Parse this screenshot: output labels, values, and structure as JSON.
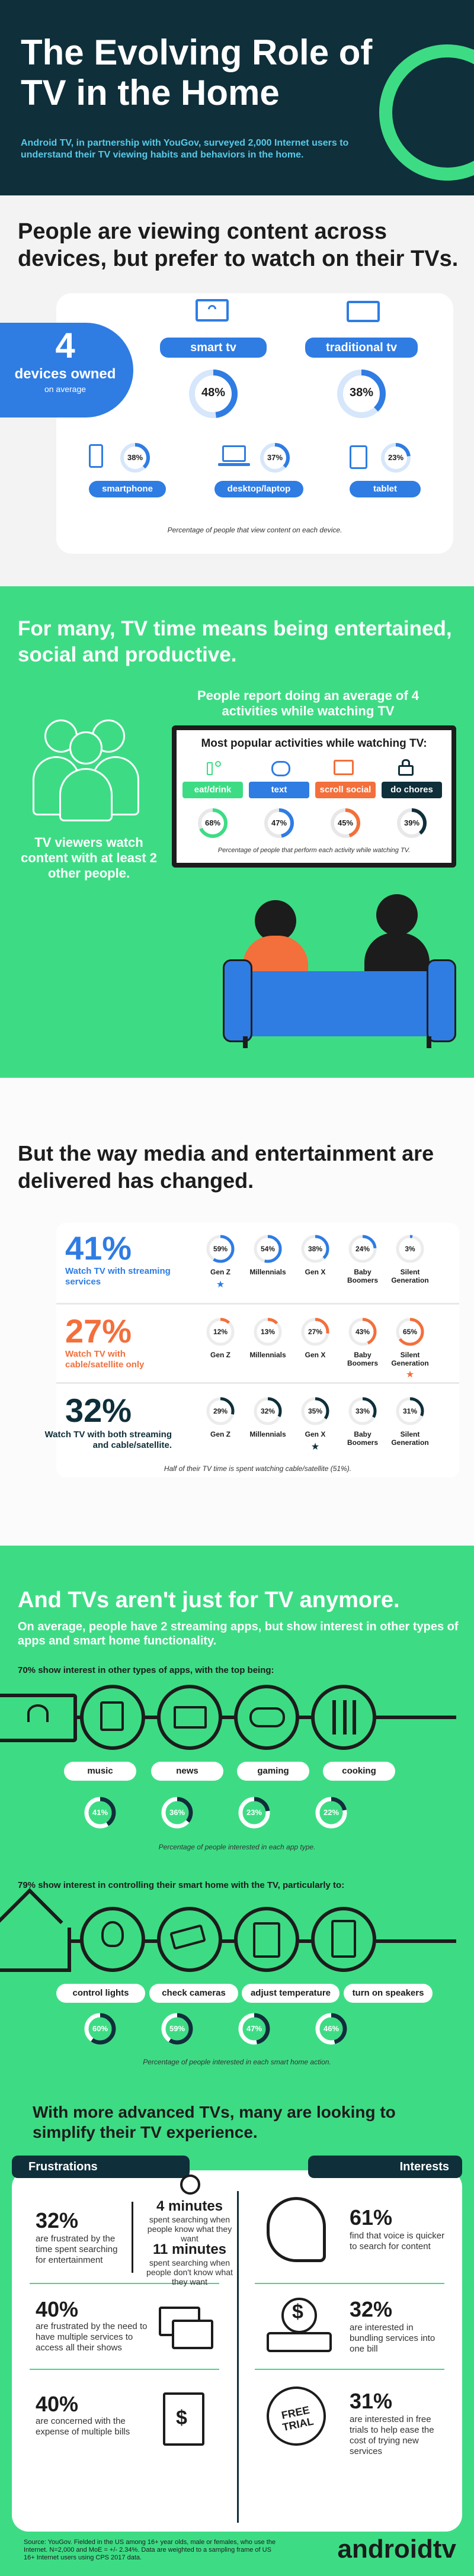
{
  "header": {
    "title": "The Evolving Role of TV in the Home",
    "intro": "Android TV, in partnership with YouGov, surveyed 2,000 Internet users to understand their TV viewing habits and behaviors in the home."
  },
  "devices": {
    "heading": "People are viewing content across devices, but prefer to watch on their TVs.",
    "owned_number": "4",
    "owned_label": "devices owned",
    "owned_sub": "on average",
    "items": [
      {
        "label": "smart tv",
        "pct": "48%",
        "value": 48
      },
      {
        "label": "traditional tv",
        "pct": "38%",
        "value": 38
      },
      {
        "label": "smartphone",
        "pct": "38%",
        "value": 38
      },
      {
        "label": "desktop/laptop",
        "pct": "37%",
        "value": 37
      },
      {
        "label": "tablet",
        "pct": "23%",
        "value": 23
      }
    ],
    "note": "Percentage of people that view content on each device."
  },
  "activities": {
    "heading": "For many, TV time means being entertained, social and productive.",
    "people_text": "TV viewers watch content with at least 2 other people.",
    "report_text": "People report doing an average of 4 activities while watching TV",
    "board_title": "Most popular activities while watching TV:",
    "items": [
      {
        "label": "eat/drink",
        "pct": "68%",
        "value": 68,
        "color": "#3ddc84"
      },
      {
        "label": "text",
        "pct": "47%",
        "value": 47,
        "color": "#2f7ce3"
      },
      {
        "label": "scroll social",
        "pct": "45%",
        "value": 45,
        "color": "#f36f3b"
      },
      {
        "label": "do chores",
        "pct": "39%",
        "value": 39,
        "color": "#0f2f3a"
      }
    ],
    "note": "Percentage of people that perform each activity while watching TV."
  },
  "delivery": {
    "heading": "But the way media and entertainment are delivered has changed.",
    "generations": [
      "Gen Z",
      "Millennials",
      "Gen X",
      "Baby Boomers",
      "Silent Generation"
    ],
    "rows": [
      {
        "big": "41%",
        "label": "Watch TV with streaming services",
        "color": "#2f7ce3",
        "pcts": [
          "59%",
          "54%",
          "38%",
          "24%",
          "3%"
        ],
        "values": [
          59,
          54,
          38,
          24,
          3
        ],
        "star": 0
      },
      {
        "big": "27%",
        "label": "Watch TV with cable/satellite only",
        "color": "#f36f3b",
        "pcts": [
          "12%",
          "13%",
          "27%",
          "43%",
          "65%"
        ],
        "values": [
          12,
          13,
          27,
          43,
          65
        ],
        "star": 4
      },
      {
        "big": "32%",
        "label": "Watch TV with both streaming and cable/satellite.",
        "color": "#0f2f3a",
        "pcts": [
          "29%",
          "32%",
          "35%",
          "33%",
          "31%"
        ],
        "values": [
          29,
          32,
          35,
          33,
          31
        ],
        "star": 2
      }
    ],
    "note": "Half of their TV time is spent watching cable/satellite (51%)."
  },
  "apps": {
    "heading": "And TVs aren't just for TV anymore.",
    "sub": "On average, people have 2 streaming apps, but show interest in other types of apps and smart home functionality.",
    "apps_intro": "70% show interest in other types of apps, with the top being:",
    "app_items": [
      {
        "label": "music",
        "pct": "41%",
        "value": 41
      },
      {
        "label": "news",
        "pct": "36%",
        "value": 36
      },
      {
        "label": "gaming",
        "pct": "23%",
        "value": 23
      },
      {
        "label": "cooking",
        "pct": "22%",
        "value": 22
      }
    ],
    "apps_note": "Percentage of people interested in each app type.",
    "home_intro": "79% show interest in controlling their smart home with the TV, particularly to:",
    "home_items": [
      {
        "label": "control lights",
        "pct": "60%",
        "value": 60
      },
      {
        "label": "check cameras",
        "pct": "59%",
        "value": 59
      },
      {
        "label": "adjust temperature",
        "pct": "47%",
        "value": 47
      },
      {
        "label": "turn on speakers",
        "pct": "46%",
        "value": 46
      }
    ],
    "home_note": "Percentage of people interested in each smart home action."
  },
  "advanced": {
    "heading": "With more advanced TVs, many are looking to simplify their TV experience.",
    "frustrations_label": "Frustrations",
    "interests_label": "Interests",
    "f1_pct": "32%",
    "f1_text": "are frustrated by the time spent searching for entertainment",
    "t1_big": "4 minutes",
    "t1_text": "spent searching when people know what they want",
    "t2_big": "11 minutes",
    "t2_text": "spent searching when people don't know what they want",
    "f2_pct": "40%",
    "f2_text": "are frustrated by the need to have multiple services to access all their shows",
    "f3_pct": "40%",
    "f3_text": "are concerned with the expense of multiple bills",
    "i1_pct": "61%",
    "i1_text": "find that voice is quicker to search for content",
    "i2_pct": "32%",
    "i2_text": "are interested in bundling services into one bill",
    "i3_pct": "31%",
    "i3_text": "are interested in free trials to help ease the cost of trying new services",
    "free_trial_text": "FREE TRIAL"
  },
  "footer": {
    "source": "Source: YouGov. Fielded in the US among 16+ year olds, male or females, who use the Internet. N=2,000 and MoE = +/- 2.34%. Data are weighted to a sampling frame of US 16+ Internet users using CPS 2017 data.",
    "logo": "androidtv"
  }
}
